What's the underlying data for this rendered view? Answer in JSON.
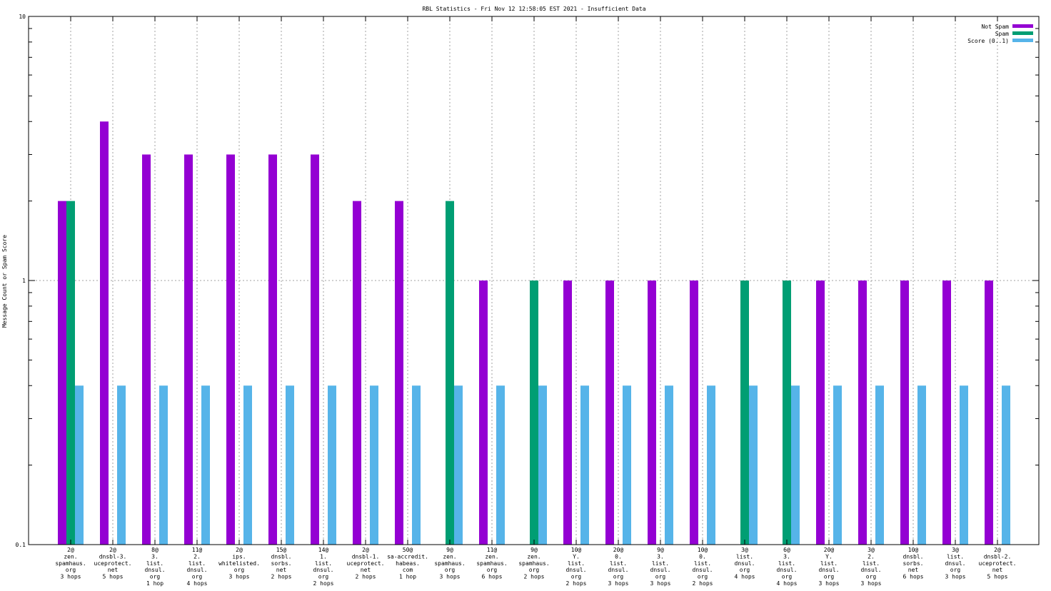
{
  "chart_data": {
    "type": "bar",
    "title": "RBL Statistics - Fri Nov 12 12:58:05 EST 2021 - Insufficient Data",
    "ylabel": "Message Count or Spam Score",
    "xlabel": "",
    "yscale": "log",
    "ylim": [
      0.1,
      10
    ],
    "ytick_labels": [
      "0.1",
      "1",
      "10"
    ],
    "grid": true,
    "legend_position": "top-right",
    "categories": [
      [
        "2@",
        "zen.",
        "spamhaus.",
        "org",
        "3 hops"
      ],
      [
        "2@",
        "dnsbl-3.",
        "uceprotect.",
        "net",
        "5 hops"
      ],
      [
        "8@",
        "3.",
        "list.",
        "dnsul.",
        "org",
        "1 hop"
      ],
      [
        "11@",
        "2.",
        "list.",
        "dnsul.",
        "org",
        "4 hops"
      ],
      [
        "2@",
        "ips.",
        "whitelisted.",
        "org",
        "3 hops"
      ],
      [
        "15@",
        "dnsbl.",
        "sorbs.",
        "net",
        "2 hops"
      ],
      [
        "14@",
        "1.",
        "list.",
        "dnsul.",
        "org",
        "2 hops"
      ],
      [
        "2@",
        "dnsbl-1.",
        "uceprotect.",
        "net",
        "2 hops"
      ],
      [
        "50@",
        "sa-accredit.",
        "habeas.",
        "com",
        "1 hop"
      ],
      [
        "9@",
        "zen.",
        "spamhaus.",
        "org",
        "3 hops"
      ],
      [
        "11@",
        "zen.",
        "spamhaus.",
        "org",
        "6 hops"
      ],
      [
        "9@",
        "zen.",
        "spamhaus.",
        "org",
        "2 hops"
      ],
      [
        "10@",
        "Y.",
        "list.",
        "dnsul.",
        "org",
        "2 hops"
      ],
      [
        "20@",
        "0.",
        "list.",
        "dnsul.",
        "org",
        "3 hops"
      ],
      [
        "9@",
        "3.",
        "list.",
        "dnsul.",
        "org",
        "3 hops"
      ],
      [
        "10@",
        "0.",
        "list.",
        "dnsul.",
        "org",
        "2 hops"
      ],
      [
        "3@",
        "list.",
        "dnsul.",
        "org",
        "4 hops"
      ],
      [
        "6@",
        "3.",
        "list.",
        "dnsul.",
        "org",
        "4 hops"
      ],
      [
        "20@",
        "Y.",
        "list.",
        "dnsul.",
        "org",
        "3 hops"
      ],
      [
        "3@",
        "2.",
        "list.",
        "dnsul.",
        "org",
        "3 hops"
      ],
      [
        "10@",
        "dnsbl.",
        "sorbs.",
        "net",
        "6 hops"
      ],
      [
        "3@",
        "list.",
        "dnsul.",
        "org",
        "3 hops"
      ],
      [
        "2@",
        "dnsbl-2.",
        "uceprotect.",
        "net",
        "5 hops"
      ]
    ],
    "series": [
      {
        "name": "Not Spam",
        "color": "#9400d3",
        "values": [
          2,
          4,
          3,
          3,
          3,
          3,
          3,
          2,
          2,
          null,
          1,
          null,
          1,
          1,
          1,
          1,
          null,
          null,
          1,
          1,
          1,
          1,
          1
        ]
      },
      {
        "name": "Spam",
        "color": "#009e73",
        "values": [
          2,
          null,
          null,
          null,
          null,
          null,
          null,
          null,
          null,
          2,
          null,
          1,
          null,
          null,
          null,
          null,
          1,
          1,
          null,
          null,
          null,
          null,
          null
        ]
      },
      {
        "name": "Score (0..1)",
        "color": "#56b4e9",
        "values": [
          0.4,
          0.4,
          0.4,
          0.4,
          0.4,
          0.4,
          0.4,
          0.4,
          0.4,
          0.4,
          0.4,
          0.4,
          0.4,
          0.4,
          0.4,
          0.4,
          0.4,
          0.4,
          0.4,
          0.4,
          0.4,
          0.4,
          0.4
        ]
      }
    ]
  }
}
